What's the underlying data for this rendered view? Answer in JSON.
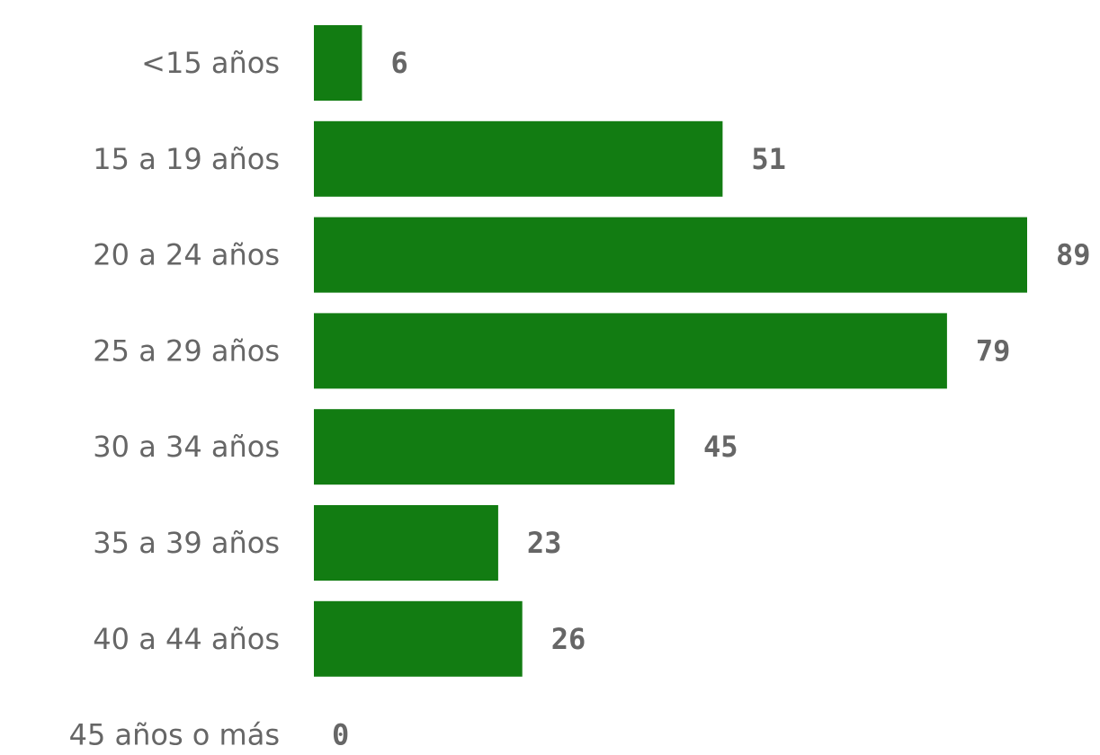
{
  "chart_data": {
    "type": "bar",
    "orientation": "horizontal",
    "title": "",
    "xlabel": "",
    "ylabel": "",
    "categories": [
      "<15 años",
      "15 a 19 años",
      "20 a 24 años",
      "25 a 29 años",
      "30 a 34 años",
      "35 a 39 años",
      "40 a 44 años",
      "45 años o más"
    ],
    "values": [
      6,
      51,
      89,
      79,
      45,
      23,
      26,
      0
    ],
    "value_labels": [
      "6",
      "51",
      "89",
      "79",
      "45",
      "23",
      "26",
      "0"
    ],
    "xlim": [
      0,
      89
    ],
    "grid": false,
    "legend": "none",
    "bar_color": "#127c12",
    "label_color": "#666666"
  }
}
